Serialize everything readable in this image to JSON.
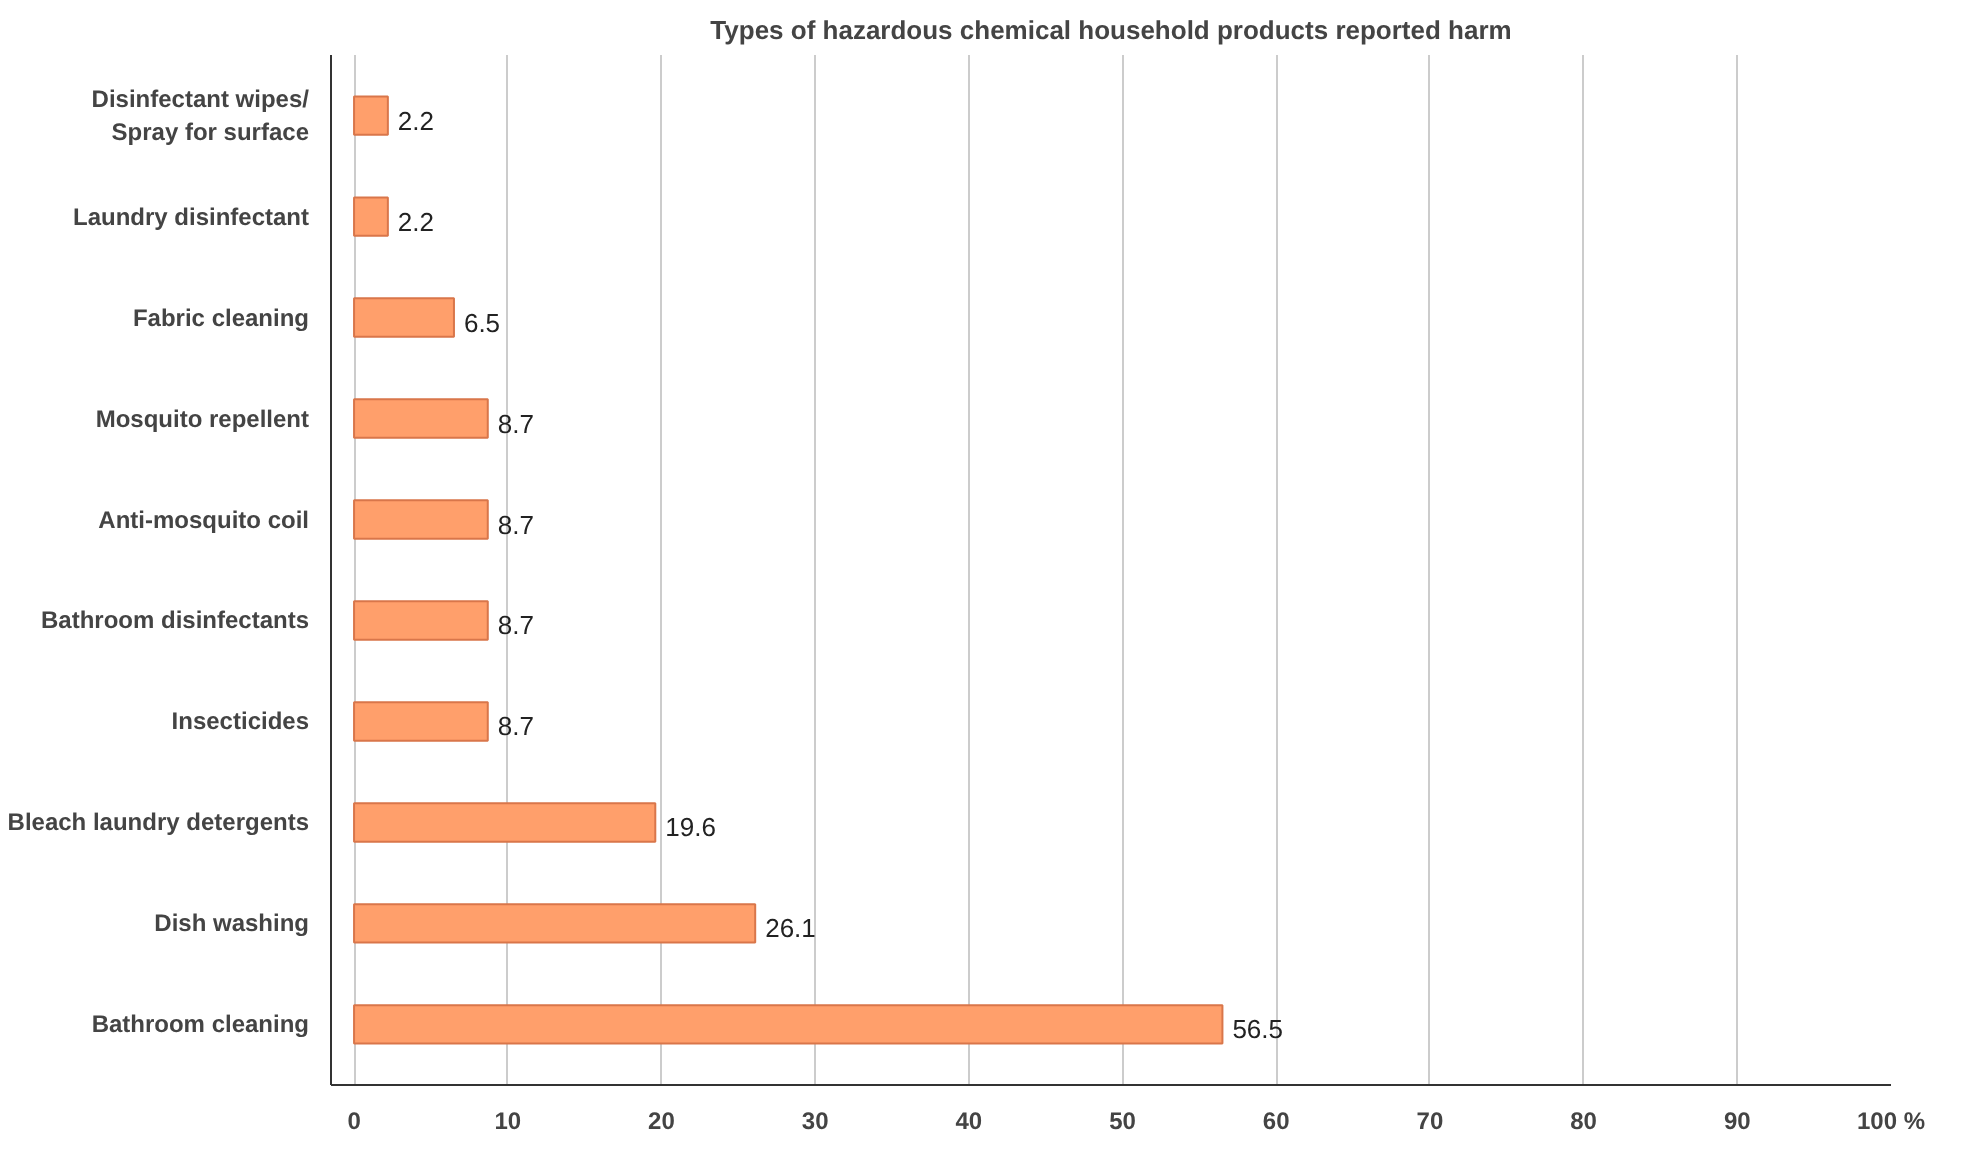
{
  "chart_data": {
    "type": "bar",
    "orientation": "horizontal",
    "title": "Types of hazardous chemical household products reported harm",
    "categories": [
      "Disinfectant wipes/\nSpray for surface",
      "Laundry disinfectant",
      "Fabric cleaning",
      "Mosquito repellent",
      "Anti-mosquito coil",
      "Bathroom disinfectants",
      "Insecticides",
      "Bleach laundry detergents",
      "Dish washing",
      "Bathroom cleaning"
    ],
    "values": [
      2.2,
      2.2,
      6.5,
      8.7,
      8.7,
      8.7,
      8.7,
      19.6,
      26.1,
      56.5
    ],
    "color": "#ff9f6b",
    "data_labels": true,
    "grid": "x",
    "xlim": [
      -1.5,
      100
    ],
    "xticks": [
      0,
      10,
      20,
      30,
      40,
      50,
      60,
      70,
      80,
      90,
      {
        "value": 100,
        "label": "100 %"
      }
    ]
  }
}
